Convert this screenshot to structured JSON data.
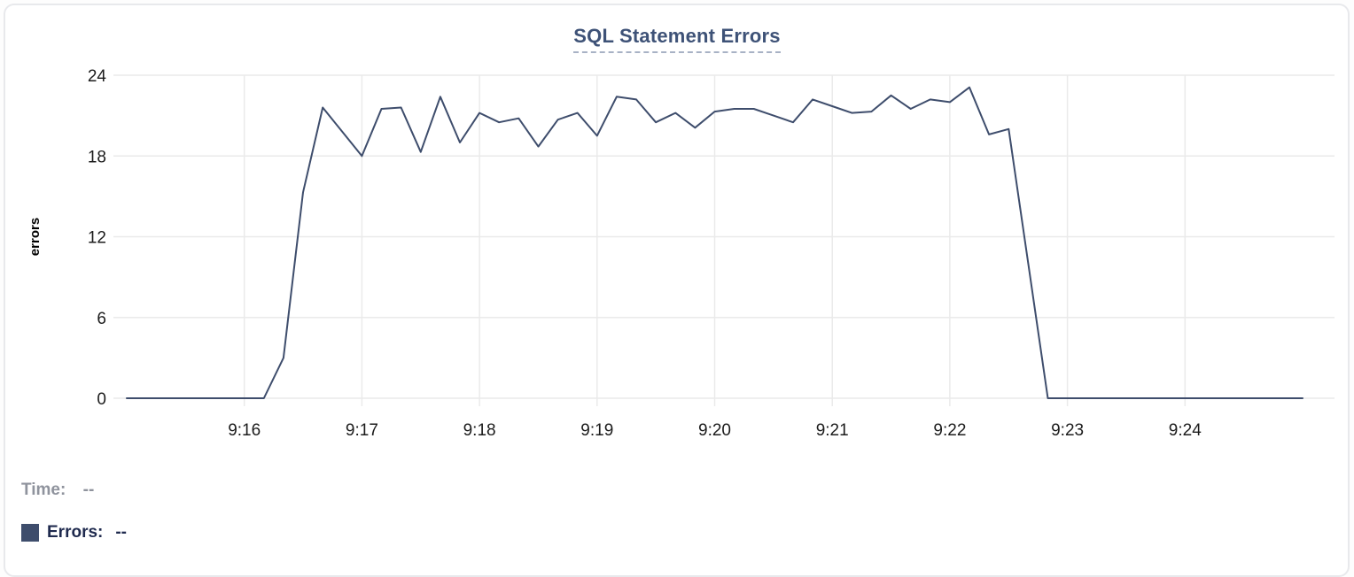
{
  "title": "SQL Statement Errors",
  "colors": {
    "line": "#3e4d6c",
    "swatch": "#3e4d6c",
    "title_text": "#3e5277",
    "title_underline": "#a8b2c5",
    "grid": "#eaeaea",
    "axis_text": "#1c1c1c",
    "time_readout": "#8f939d",
    "errors_readout": "#1f2a4e",
    "card_border": "#e8e9ec",
    "background": "#ffffff"
  },
  "readout": {
    "time_label": "Time:",
    "time_value": "--",
    "errors_label": "Errors:",
    "errors_value": "--"
  },
  "chart_data": {
    "type": "line",
    "title": "SQL Statement Errors",
    "xlabel": "",
    "ylabel": "errors",
    "ylim": [
      0,
      24
    ],
    "y_ticks": [
      0,
      6,
      12,
      18,
      24
    ],
    "x_tick_labels": [
      "9:16",
      "9:17",
      "9:18",
      "9:19",
      "9:20",
      "9:21",
      "9:22",
      "9:23",
      "9:24"
    ],
    "x_range": [
      "9:15:00",
      "9:25:00"
    ],
    "sample_interval_seconds": 10,
    "grid": true,
    "legend_series": "Errors",
    "x": [
      "9:15:00",
      "9:15:10",
      "9:15:20",
      "9:15:30",
      "9:15:40",
      "9:15:50",
      "9:16:00",
      "9:16:10",
      "9:16:20",
      "9:16:30",
      "9:16:40",
      "9:16:50",
      "9:17:00",
      "9:17:10",
      "9:17:20",
      "9:17:30",
      "9:17:40",
      "9:17:50",
      "9:18:00",
      "9:18:10",
      "9:18:20",
      "9:18:30",
      "9:18:40",
      "9:18:50",
      "9:19:00",
      "9:19:10",
      "9:19:20",
      "9:19:30",
      "9:19:40",
      "9:19:50",
      "9:20:00",
      "9:20:10",
      "9:20:20",
      "9:20:30",
      "9:20:40",
      "9:20:50",
      "9:21:00",
      "9:21:10",
      "9:21:20",
      "9:21:30",
      "9:21:40",
      "9:21:50",
      "9:22:00",
      "9:22:10",
      "9:22:20",
      "9:22:30",
      "9:22:40",
      "9:22:50",
      "9:23:00",
      "9:23:10",
      "9:23:20",
      "9:23:30",
      "9:23:40",
      "9:23:50",
      "9:24:00",
      "9:24:10",
      "9:24:20",
      "9:24:30",
      "9:24:40",
      "9:24:50",
      "9:25:00"
    ],
    "values": [
      0,
      0,
      0,
      0,
      0,
      0,
      0,
      0,
      3,
      15.3,
      21.6,
      19.8,
      18,
      21.5,
      21.6,
      18.3,
      22.4,
      19,
      21.2,
      20.5,
      20.8,
      18.7,
      20.7,
      21.2,
      19.5,
      22.4,
      22.2,
      20.5,
      21.2,
      20.1,
      21.3,
      21.5,
      21.5,
      21,
      20.5,
      22.2,
      21.7,
      21.2,
      21.3,
      22.5,
      21.5,
      22.2,
      22,
      23.1,
      19.6,
      20,
      10,
      0,
      0,
      0,
      0,
      0,
      0,
      0,
      0,
      0,
      0,
      0,
      0,
      0,
      0
    ]
  }
}
